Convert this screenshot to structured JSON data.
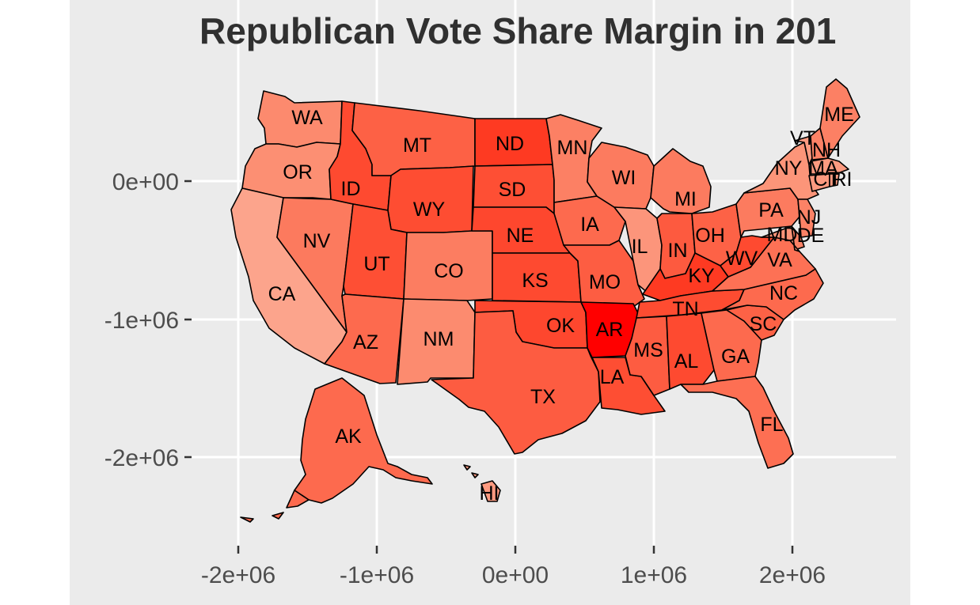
{
  "chart_data": {
    "type": "choropleth",
    "title": "Republican Vote Share Margin in 201",
    "x_ticks": [
      "-2e+06",
      "-1e+06",
      "0e+00",
      "1e+06",
      "2e+06"
    ],
    "y_ticks": [
      "0e+00",
      "-1e+06",
      "-2e+06"
    ],
    "x_tick_values": [
      -2000000,
      -1000000,
      0,
      1000000,
      2000000
    ],
    "y_tick_values": [
      0,
      -1000000,
      -2000000
    ],
    "colors": {
      "panel_background": "#ebebeb",
      "gridline": "#ffffff",
      "state_border": "#000000",
      "low_end": "#fca88f",
      "high_end": "#ff0000"
    },
    "states": [
      {
        "abbr": "WA",
        "fill": "#fc8a6e"
      },
      {
        "abbr": "OR",
        "fill": "#fc8f73"
      },
      {
        "abbr": "CA",
        "fill": "#fca48c"
      },
      {
        "abbr": "NV",
        "fill": "#fc7a5e"
      },
      {
        "abbr": "ID",
        "fill": "#fe4a30"
      },
      {
        "abbr": "MT",
        "fill": "#fd6145"
      },
      {
        "abbr": "WY",
        "fill": "#fe4d32"
      },
      {
        "abbr": "UT",
        "fill": "#fe4f34"
      },
      {
        "abbr": "CO",
        "fill": "#fc7d61"
      },
      {
        "abbr": "AZ",
        "fill": "#fd6a4e"
      },
      {
        "abbr": "NM",
        "fill": "#fc8b6f"
      },
      {
        "abbr": "ND",
        "fill": "#fe3a22"
      },
      {
        "abbr": "SD",
        "fill": "#fe4f34"
      },
      {
        "abbr": "NE",
        "fill": "#fe472e"
      },
      {
        "abbr": "KS",
        "fill": "#fe4a30"
      },
      {
        "abbr": "OK",
        "fill": "#fe472e"
      },
      {
        "abbr": "TX",
        "fill": "#fd5c41"
      },
      {
        "abbr": "MN",
        "fill": "#fc8064"
      },
      {
        "abbr": "IA",
        "fill": "#fd6a4e"
      },
      {
        "abbr": "MO",
        "fill": "#fd5d42"
      },
      {
        "abbr": "AR",
        "fill": "#ff0000"
      },
      {
        "abbr": "LA",
        "fill": "#fe4e33"
      },
      {
        "abbr": "WI",
        "fill": "#fc7b5f"
      },
      {
        "abbr": "IL",
        "fill": "#fc957b"
      },
      {
        "abbr": "MI",
        "fill": "#fc7b5f"
      },
      {
        "abbr": "IN",
        "fill": "#fd5a3f"
      },
      {
        "abbr": "OH",
        "fill": "#fd6246"
      },
      {
        "abbr": "KY",
        "fill": "#fe3a22"
      },
      {
        "abbr": "TN",
        "fill": "#fe4c31"
      },
      {
        "abbr": "MS",
        "fill": "#fd5c41"
      },
      {
        "abbr": "AL",
        "fill": "#fe4a30"
      },
      {
        "abbr": "GA",
        "fill": "#fd6a4e"
      },
      {
        "abbr": "FL",
        "fill": "#fd6f53"
      },
      {
        "abbr": "SC",
        "fill": "#fd6246"
      },
      {
        "abbr": "NC",
        "fill": "#fd6a4e"
      },
      {
        "abbr": "VA",
        "fill": "#fd7155"
      },
      {
        "abbr": "WV",
        "fill": "#fe4a30"
      },
      {
        "abbr": "PA",
        "fill": "#fc7b5f"
      },
      {
        "abbr": "NY",
        "fill": "#fc9579"
      },
      {
        "abbr": "VT",
        "fill": "#fc9a80"
      },
      {
        "abbr": "NH",
        "fill": "#fc8266"
      },
      {
        "abbr": "ME",
        "fill": "#fc8064"
      },
      {
        "abbr": "MA",
        "fill": "#fc9a80"
      },
      {
        "abbr": "CT",
        "fill": "#fc9a80"
      },
      {
        "abbr": "RI",
        "fill": "#fc9a80"
      },
      {
        "abbr": "NJ",
        "fill": "#fc8266"
      },
      {
        "abbr": "DE",
        "fill": "#fc8266"
      },
      {
        "abbr": "MD",
        "fill": "#fc9579"
      },
      {
        "abbr": "AK",
        "fill": "#fd6a4e"
      },
      {
        "abbr": "HI",
        "fill": "#fc9a80"
      }
    ]
  }
}
